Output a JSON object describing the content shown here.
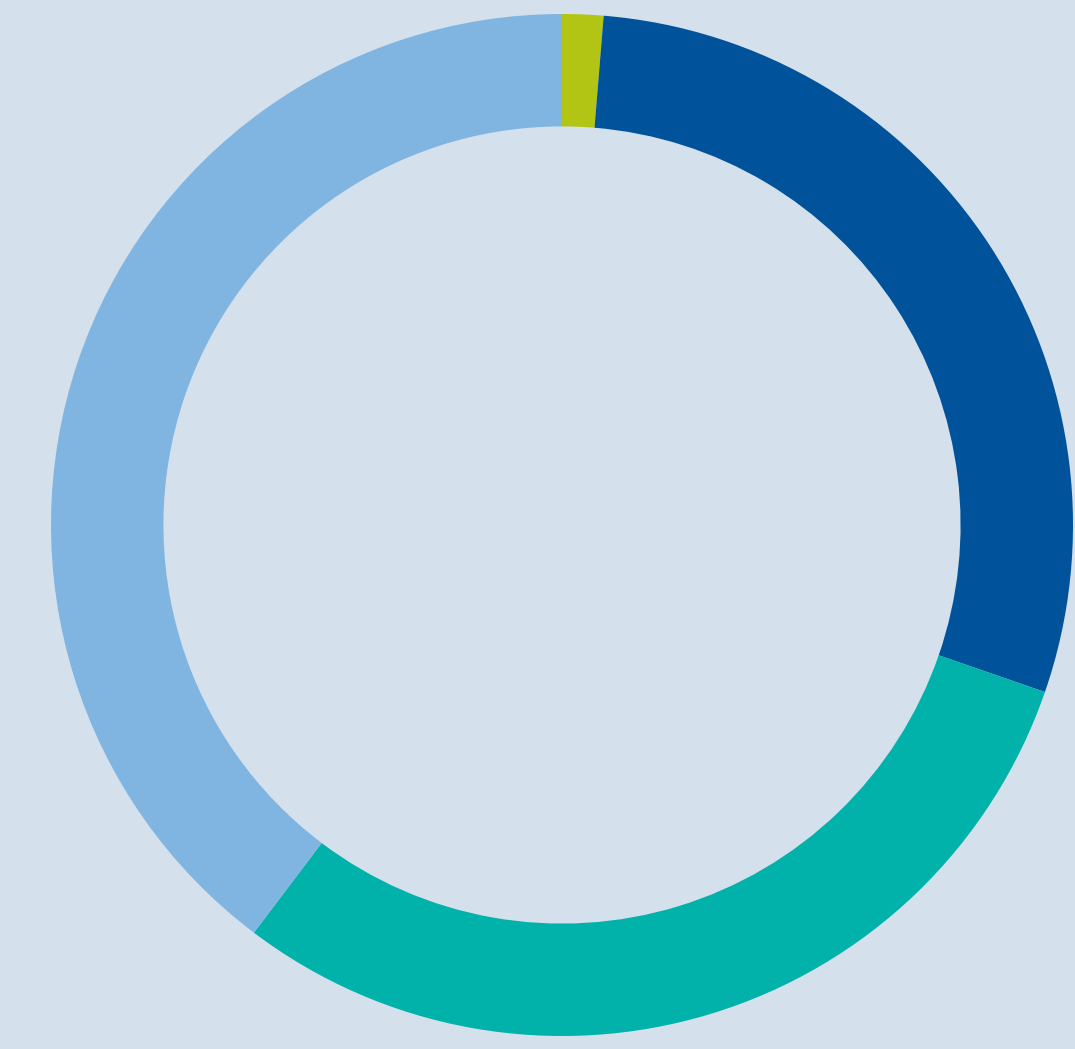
{
  "chart_data": {
    "type": "pie",
    "categories": [
      null,
      null,
      null,
      null
    ],
    "values": [
      1.3,
      29,
      30,
      39.7
    ],
    "colors": [
      "#b3c514",
      "#00529b",
      "#00b2a9",
      "#80b5e2"
    ]
  }
}
